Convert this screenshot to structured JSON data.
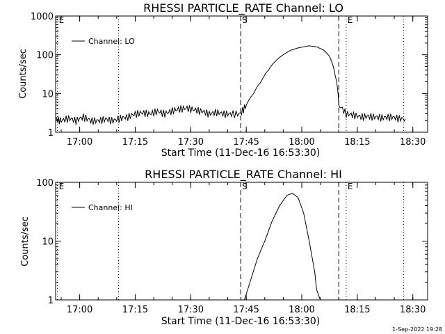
{
  "footer": {
    "timestamp": "1-Sep-2022 19:28"
  },
  "chart_data": [
    {
      "type": "line",
      "title": "RHESSI PARTICLE_RATE Channel: LO",
      "xlabel": "Start Time (11-Dec-16 16:53:30)",
      "ylabel": "Counts/sec",
      "x_unit": "UT time (HH:MM)",
      "xlim": [
        "16:53:30",
        "18:34:00"
      ],
      "ylim": [
        1,
        1000
      ],
      "yscale": "log",
      "x_ticks": [
        "17:00",
        "17:15",
        "17:30",
        "17:45",
        "18:00",
        "18:15",
        "18:30"
      ],
      "y_ticks": [
        "1",
        "10",
        "100",
        "1000"
      ],
      "grid": false,
      "legend_position": "top-left",
      "markers": [
        {
          "label": "E",
          "x": "16:54:00",
          "style": "dotted"
        },
        {
          "label": "",
          "x": "17:10:30",
          "style": "dotted"
        },
        {
          "label": "S",
          "x": "17:43:30",
          "style": "dashed"
        },
        {
          "label": "",
          "x": "18:10:00",
          "style": "dashed"
        },
        {
          "label": "E",
          "x": "18:12:00",
          "style": "dotted"
        },
        {
          "label": "",
          "x": "18:27:30",
          "style": "dotted"
        }
      ],
      "series": [
        {
          "name": "Channel: LO",
          "x": [
            "16:53:30",
            "16:55:00",
            "16:57:00",
            "16:59:00",
            "17:01:00",
            "17:03:00",
            "17:05:00",
            "17:07:00",
            "17:09:00",
            "17:11:00",
            "17:13:00",
            "17:15:00",
            "17:17:00",
            "17:19:00",
            "17:21:00",
            "17:23:00",
            "17:25:00",
            "17:27:00",
            "17:29:00",
            "17:31:00",
            "17:33:00",
            "17:35:00",
            "17:37:00",
            "17:39:00",
            "17:41:00",
            "17:43:30",
            "17:45:00",
            "17:47:00",
            "17:49:00",
            "17:51:00",
            "17:53:00",
            "17:55:00",
            "17:57:00",
            "17:59:00",
            "18:00:30",
            "18:02:00",
            "18:04:00",
            "18:06:00",
            "18:07:30",
            "18:09:00",
            "18:10:00",
            "18:12:00",
            "18:14:00",
            "18:16:00",
            "18:18:00",
            "18:20:00",
            "18:22:00",
            "18:24:00",
            "18:26:00",
            "18:28:00"
          ],
          "y": [
            2.2,
            2,
            2.3,
            2,
            2.5,
            2,
            2,
            2.2,
            2,
            2.3,
            2.5,
            3,
            3.2,
            3,
            3.5,
            3,
            3.6,
            4,
            4.2,
            3.8,
            3.5,
            3,
            3.3,
            3,
            3,
            3,
            5,
            10,
            20,
            40,
            70,
            100,
            130,
            150,
            160,
            170,
            160,
            130,
            90,
            30,
            5,
            3,
            2.8,
            2.5,
            2.6,
            2.5,
            2.4,
            2.5,
            2.3,
            2.2
          ]
        }
      ]
    },
    {
      "type": "line",
      "title": "RHESSI PARTICLE_RATE Channel: HI",
      "xlabel": "Start Time (11-Dec-16 16:53:30)",
      "ylabel": "Counts/sec",
      "x_unit": "UT time (HH:MM)",
      "xlim": [
        "16:53:30",
        "18:34:00"
      ],
      "ylim": [
        1,
        100
      ],
      "yscale": "log",
      "x_ticks": [
        "17:00",
        "17:15",
        "17:30",
        "17:45",
        "18:00",
        "18:15",
        "18:30"
      ],
      "y_ticks": [
        "1",
        "10",
        "100"
      ],
      "grid": false,
      "legend_position": "top-left",
      "markers": [
        {
          "label": "E",
          "x": "16:54:00",
          "style": "dotted"
        },
        {
          "label": "",
          "x": "17:10:30",
          "style": "dotted"
        },
        {
          "label": "S",
          "x": "17:43:30",
          "style": "dashed"
        },
        {
          "label": "",
          "x": "18:10:00",
          "style": "dashed"
        },
        {
          "label": "E",
          "x": "18:12:00",
          "style": "dotted"
        },
        {
          "label": "",
          "x": "18:27:30",
          "style": "dotted"
        }
      ],
      "series": [
        {
          "name": "Channel: HI",
          "x": [
            "17:44:30",
            "17:46:00",
            "17:48:00",
            "17:50:00",
            "17:52:00",
            "17:54:00",
            "17:56:00",
            "17:57:30",
            "17:59:00",
            "18:00:30",
            "18:02:00",
            "18:03:30",
            "18:04:00",
            "18:05:00"
          ],
          "y": [
            1,
            2,
            5,
            10,
            22,
            40,
            60,
            65,
            55,
            30,
            10,
            3,
            1.5,
            1
          ]
        }
      ]
    }
  ]
}
